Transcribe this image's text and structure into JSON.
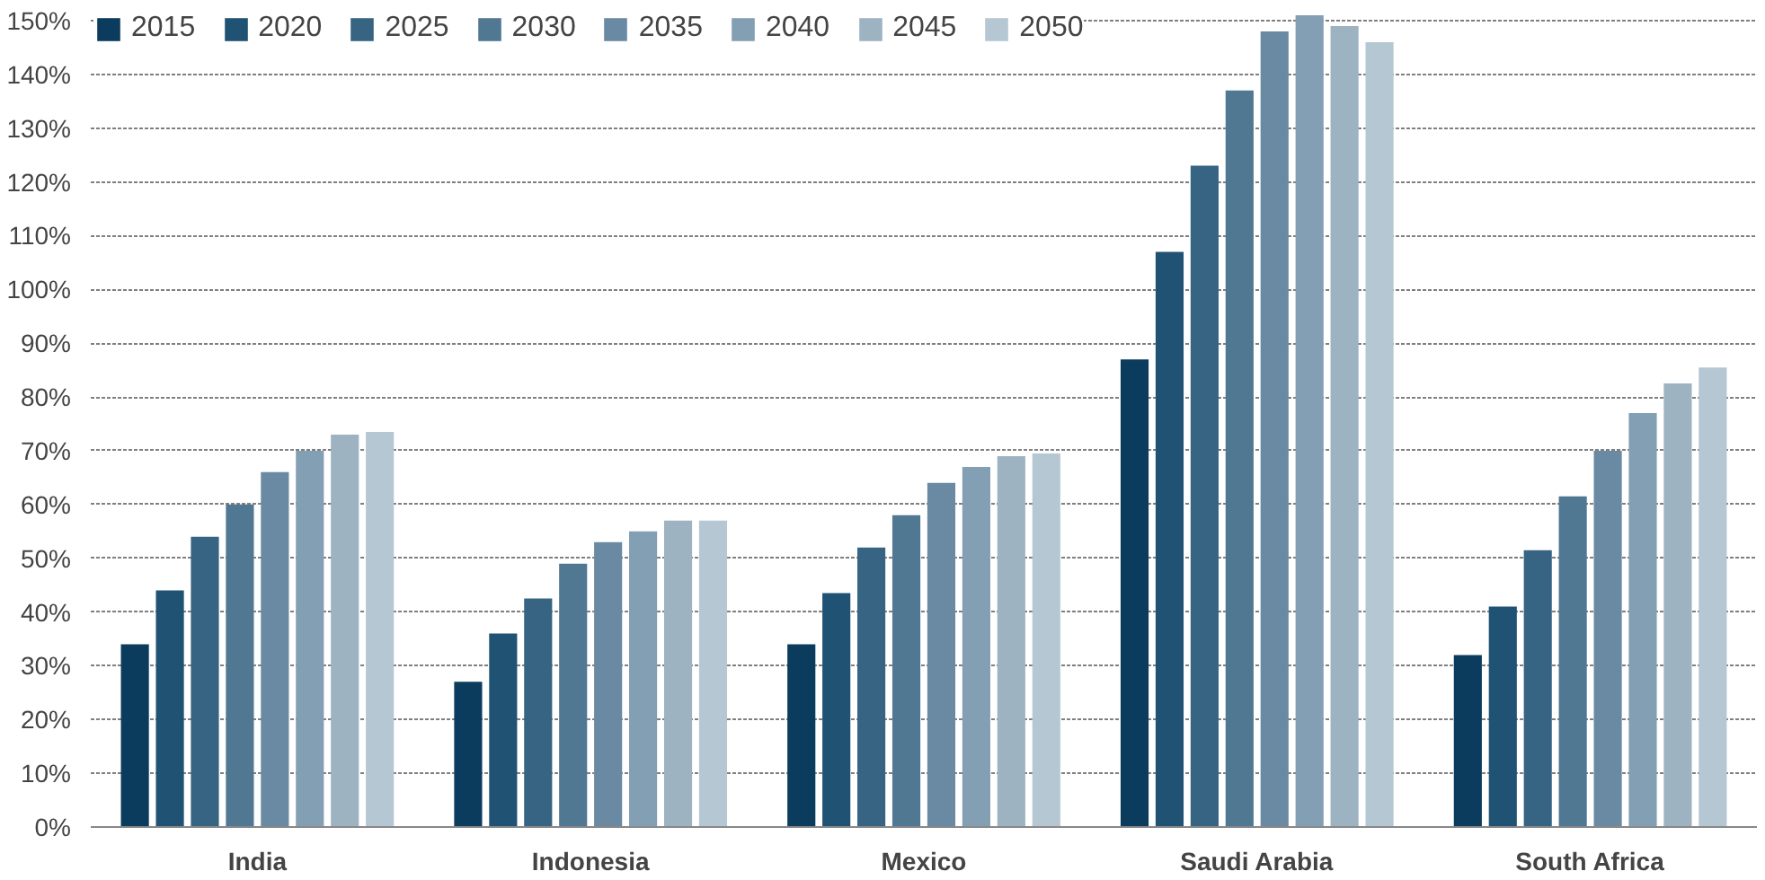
{
  "chart_data": {
    "type": "bar",
    "categories": [
      "India",
      "Indonesia",
      "Mexico",
      "Saudi Arabia",
      "South Africa"
    ],
    "series": [
      {
        "name": "2015",
        "color": "#0b3c5d",
        "values": [
          34,
          27,
          34,
          87,
          32
        ]
      },
      {
        "name": "2020",
        "color": "#1f5273",
        "values": [
          44,
          36,
          43.5,
          107,
          41
        ]
      },
      {
        "name": "2025",
        "color": "#366482",
        "values": [
          54,
          42.5,
          52,
          123,
          51.5
        ]
      },
      {
        "name": "2030",
        "color": "#507892",
        "values": [
          60,
          49,
          58,
          137,
          61.5
        ]
      },
      {
        "name": "2035",
        "color": "#698aa2",
        "values": [
          66,
          53,
          64,
          148,
          70
        ]
      },
      {
        "name": "2040",
        "color": "#839fb3",
        "values": [
          70,
          55,
          67,
          151,
          77
        ]
      },
      {
        "name": "2045",
        "color": "#9db3c2",
        "values": [
          73,
          57,
          69,
          149,
          82.5
        ]
      },
      {
        "name": "2050",
        "color": "#b5c7d3",
        "values": [
          73.5,
          57,
          69.5,
          146,
          85.5
        ]
      }
    ],
    "ylim": [
      0,
      152
    ],
    "yticks": [
      {
        "value": 0,
        "label": "0%"
      },
      {
        "value": 10,
        "label": "10%"
      },
      {
        "value": 20,
        "label": "20%"
      },
      {
        "value": 30,
        "label": "30%"
      },
      {
        "value": 40,
        "label": "40%"
      },
      {
        "value": 50,
        "label": "50%"
      },
      {
        "value": 60,
        "label": "60%"
      },
      {
        "value": 70,
        "label": "70%"
      },
      {
        "value": 80,
        "label": "80%"
      },
      {
        "value": 90,
        "label": "90%"
      },
      {
        "value": 100,
        "label": "100%"
      },
      {
        "value": 110,
        "label": "110%"
      },
      {
        "value": 120,
        "label": "120%"
      },
      {
        "value": 130,
        "label": "130%"
      },
      {
        "value": 140,
        "label": "140%"
      },
      {
        "value": 150,
        "label": "150%"
      }
    ],
    "grid": "y",
    "legend": "top left"
  }
}
